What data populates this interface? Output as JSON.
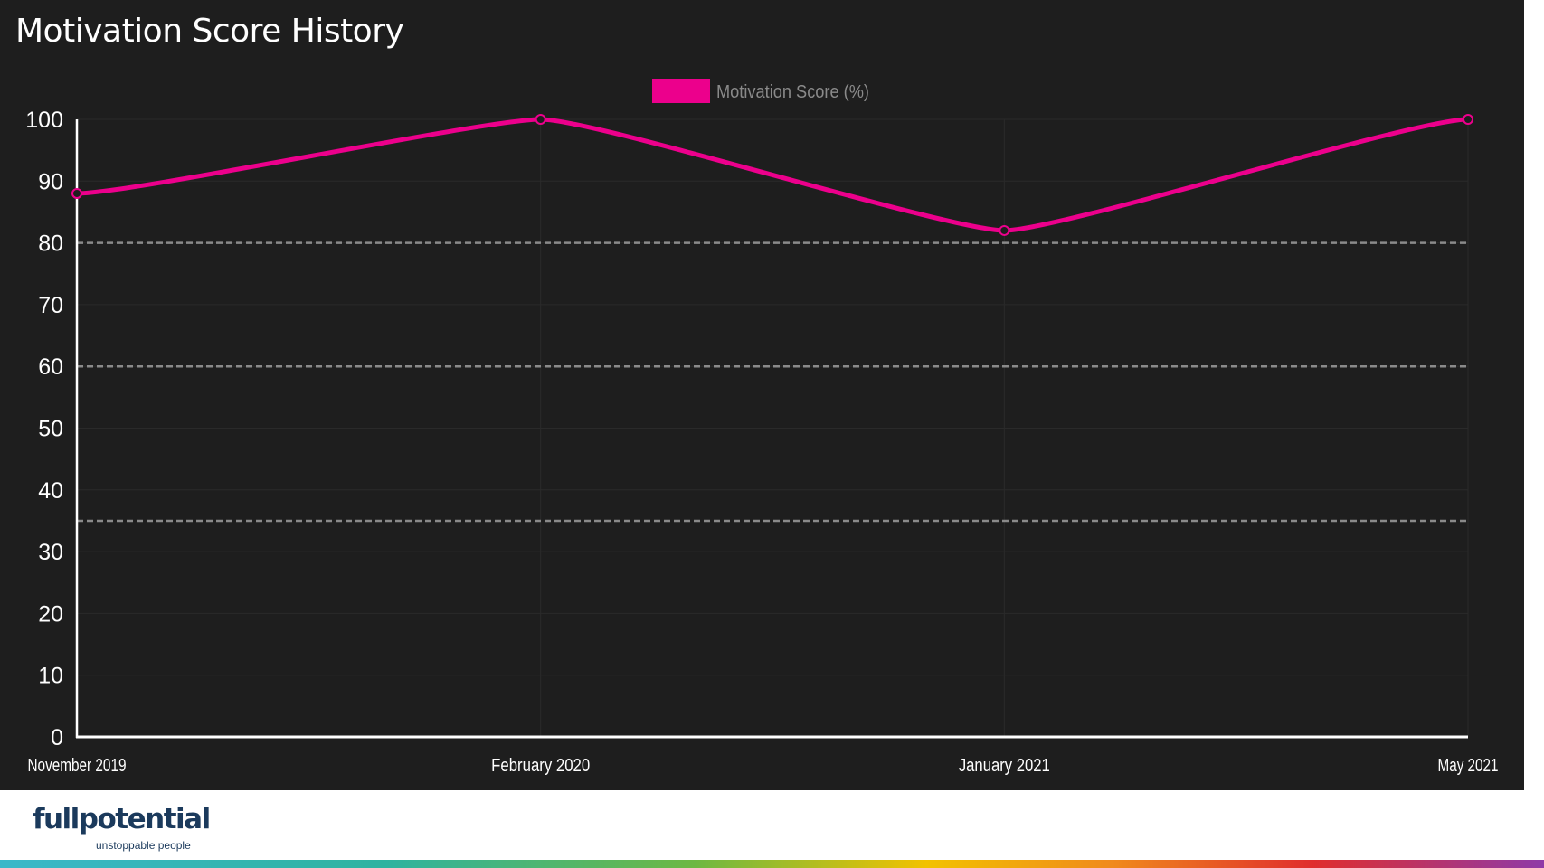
{
  "colors": {
    "background": "#1e1e1e",
    "series": "#ec008c",
    "grid": "#2a2a2a",
    "threshold": "#8a8a8a",
    "axis": "#ffffff",
    "text": "#ffffff",
    "legend_text": "#8a8a8a",
    "logo": "#1b3a5c"
  },
  "logo": {
    "word": "fullpotential",
    "tagline": "unstoppable people"
  },
  "chart_data": {
    "type": "line",
    "title": "Motivation Score History",
    "xlabel": "",
    "ylabel": "",
    "categories": [
      "November 2019",
      "February 2020",
      "January 2021",
      "May 2021"
    ],
    "series": [
      {
        "name": "Motivation Score (%)",
        "values": [
          88,
          100,
          82,
          100
        ]
      }
    ],
    "ylim": [
      0,
      100
    ],
    "yticks": [
      0,
      10,
      20,
      30,
      40,
      50,
      60,
      70,
      80,
      90,
      100
    ],
    "reference_lines": [
      80,
      60,
      35
    ],
    "legend_position": "top-center",
    "grid": true
  }
}
